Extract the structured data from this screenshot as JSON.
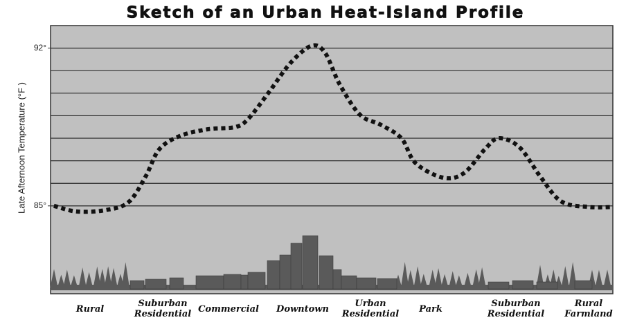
{
  "chart_data": {
    "type": "line",
    "title": "Sketch of an Urban Heat-Island Profile",
    "ylabel": "Late Afternoon Temperature (°F )",
    "categories": [
      "Rural",
      "Suburban Residential",
      "Commercial",
      "Downtown",
      "Urban Residential",
      "Park",
      "Suburban Residential",
      "Rural Farmland"
    ],
    "x": [
      0.6,
      4.6,
      9.5,
      13.8,
      16.9,
      19.3,
      23.0,
      28.0,
      32.9,
      35.3,
      39.0,
      42.7,
      46.4,
      48.8,
      51.4,
      55.0,
      58.7,
      62.4,
      64.9,
      69.8,
      73.5,
      77.2,
      79.7,
      83.4,
      87.1,
      90.8,
      95.7,
      100
    ],
    "series": [
      {
        "color": "#111111",
        "values": [
          85.0,
          84.75,
          84.8,
          85.15,
          86.3,
          87.5,
          88.1,
          88.4,
          88.5,
          88.9,
          90.1,
          91.35,
          92.1,
          91.8,
          90.4,
          89.05,
          88.6,
          88.0,
          86.9,
          86.25,
          86.45,
          87.5,
          88.0,
          87.6,
          86.3,
          85.2,
          84.95,
          84.95
        ]
      }
    ],
    "xlim": [
      0,
      100
    ],
    "ylim": [
      81.1,
      93
    ],
    "yticks": [
      {
        "value": 85,
        "label": "85°"
      },
      {
        "value": 92,
        "label": "92°"
      }
    ],
    "ygrid": [
      85,
      86,
      87,
      88,
      89,
      90,
      91,
      92
    ],
    "grid": true
  }
}
